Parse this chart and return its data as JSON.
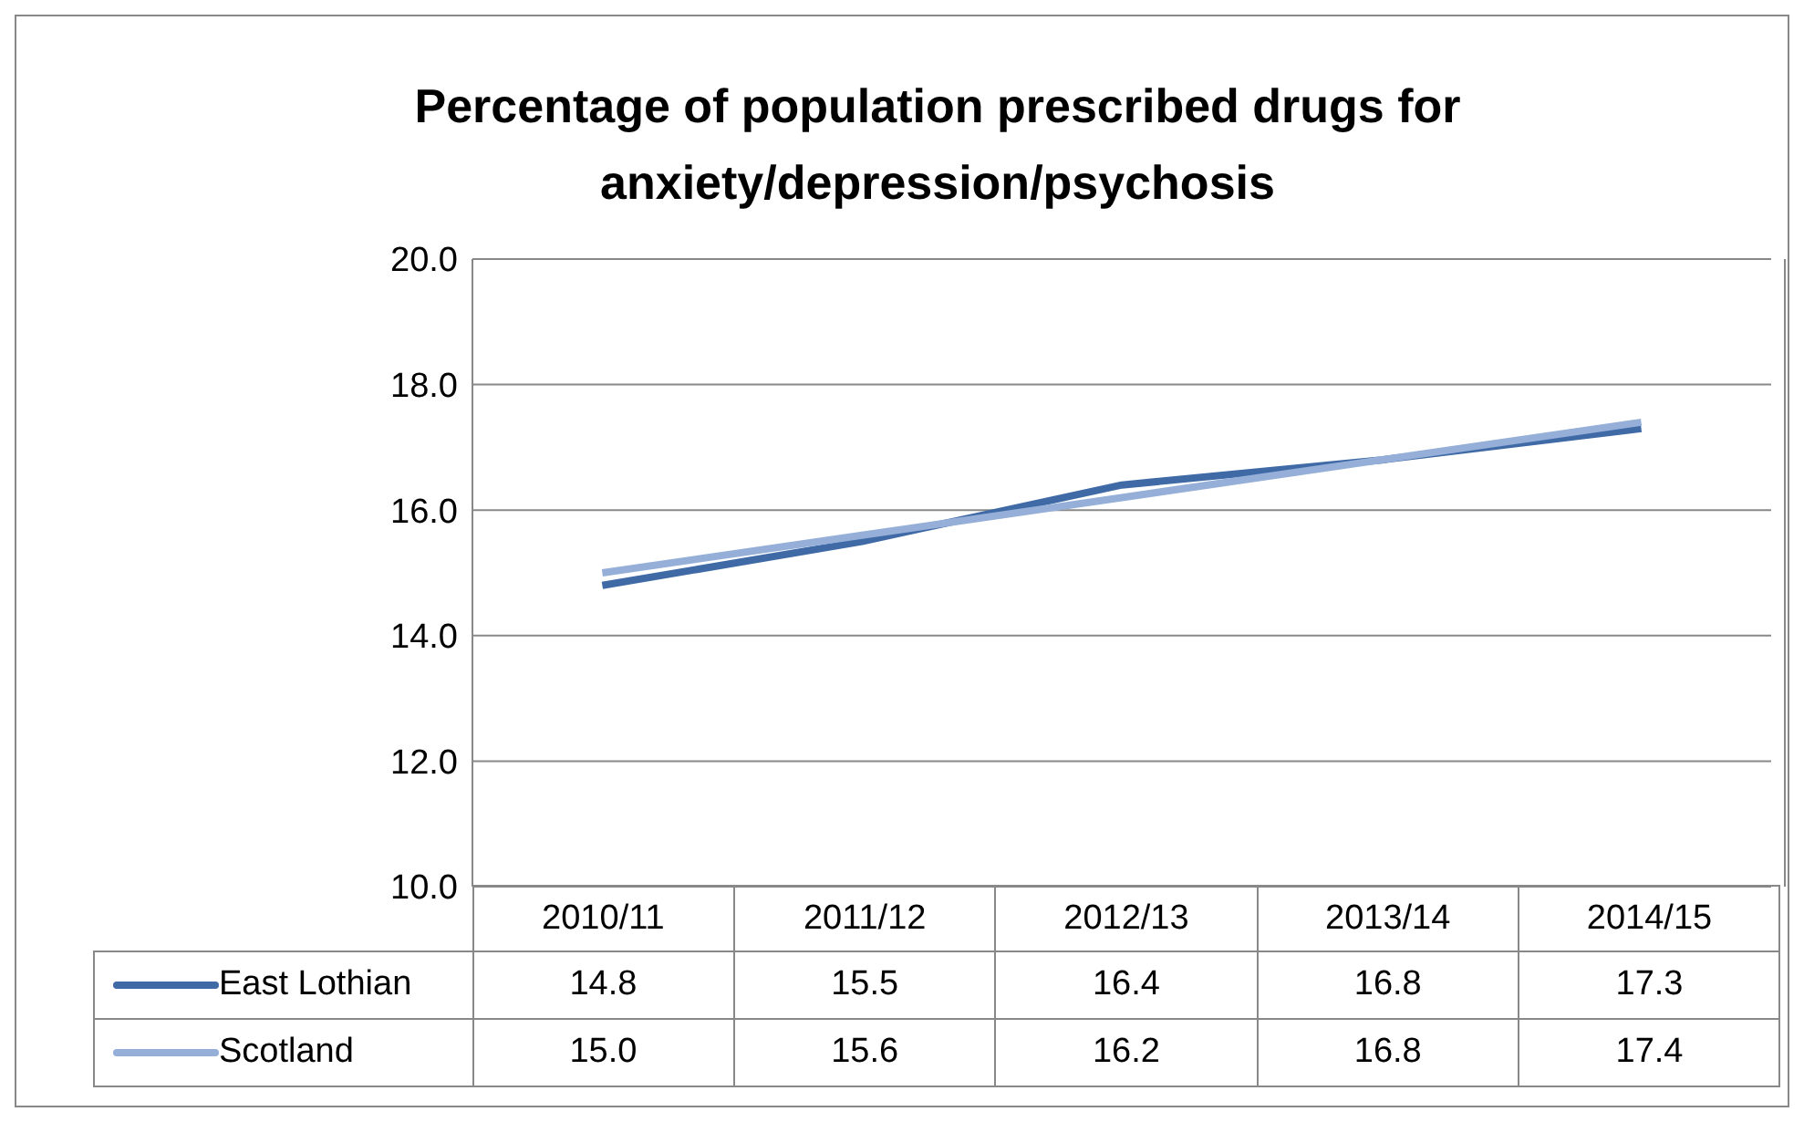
{
  "chart_data": {
    "type": "line",
    "title": "Percentage of population prescribed drugs for anxiety/depression/psychosis",
    "categories": [
      "2010/11",
      "2011/12",
      "2012/13",
      "2013/14",
      "2014/15"
    ],
    "series": [
      {
        "name": "East Lothian",
        "color": "#3f6aa6",
        "values": [
          14.8,
          15.5,
          16.4,
          16.8,
          17.3
        ],
        "value_labels": [
          "14.8",
          "15.5",
          "16.4",
          "16.8",
          "17.3"
        ]
      },
      {
        "name": "Scotland",
        "color": "#95afd8",
        "values": [
          15.0,
          15.6,
          16.2,
          16.8,
          17.4
        ],
        "value_labels": [
          "15.0",
          "15.6",
          "16.2",
          "16.8",
          "17.4"
        ]
      }
    ],
    "ylim": [
      10,
      20
    ],
    "yticks": [
      {
        "value": 10,
        "label": "10.0"
      },
      {
        "value": 12,
        "label": "12.0"
      },
      {
        "value": 14,
        "label": "14.0"
      },
      {
        "value": 16,
        "label": "16.0"
      },
      {
        "value": 18,
        "label": "18.0"
      },
      {
        "value": 20,
        "label": "20.0"
      }
    ],
    "grid": "y",
    "legend": "bottom left",
    "marker": "none",
    "line_style": "solid"
  }
}
